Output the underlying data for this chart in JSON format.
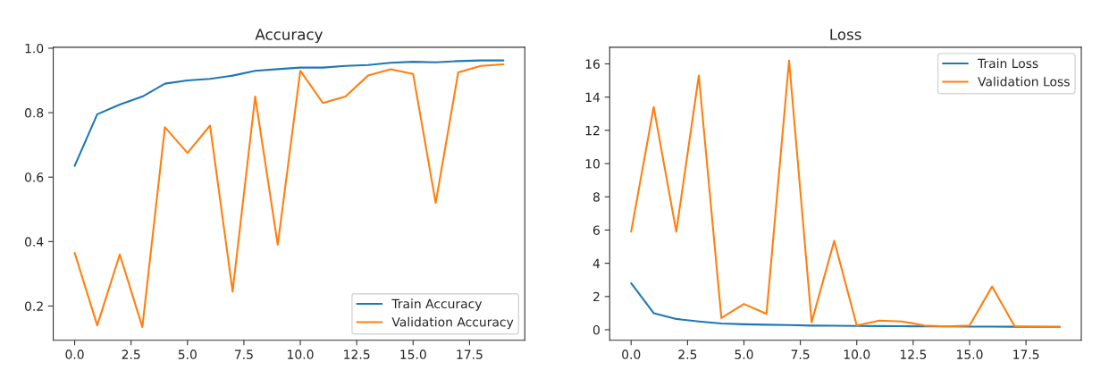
{
  "chart_data": [
    {
      "type": "line",
      "title": "Accuracy",
      "x": [
        0,
        1,
        2,
        3,
        4,
        5,
        6,
        7,
        8,
        9,
        10,
        11,
        12,
        13,
        14,
        15,
        16,
        17,
        18,
        19
      ],
      "series": [
        {
          "name": "Train Accuracy",
          "color": "#1f77b4",
          "values": [
            0.635,
            0.795,
            0.825,
            0.85,
            0.89,
            0.9,
            0.905,
            0.915,
            0.93,
            0.935,
            0.94,
            0.94,
            0.945,
            0.948,
            0.955,
            0.958,
            0.956,
            0.96,
            0.962,
            0.962
          ]
        },
        {
          "name": "Validation Accuracy",
          "color": "#ff7f0e",
          "values": [
            0.365,
            0.14,
            0.36,
            0.135,
            0.755,
            0.675,
            0.76,
            0.245,
            0.85,
            0.39,
            0.93,
            0.83,
            0.85,
            0.915,
            0.935,
            0.92,
            0.52,
            0.925,
            0.945,
            0.95
          ]
        }
      ],
      "xlim": [
        -0.95,
        19.95
      ],
      "xticks": [
        {
          "value": 0,
          "label": "0.0"
        },
        {
          "value": 2.5,
          "label": "2.5"
        },
        {
          "value": 5,
          "label": "5.0"
        },
        {
          "value": 7.5,
          "label": "7.5"
        },
        {
          "value": 10,
          "label": "10.0"
        },
        {
          "value": 12.5,
          "label": "12.5"
        },
        {
          "value": 15,
          "label": "15.0"
        },
        {
          "value": 17.5,
          "label": "17.5"
        }
      ],
      "ylim": [
        0.094,
        1.003
      ],
      "yticks": [
        0.2,
        0.4,
        0.6,
        0.8,
        {
          "value": 1,
          "label": "1.0"
        }
      ],
      "legend": "bottom right",
      "grid": false
    },
    {
      "type": "line",
      "title": "Loss",
      "x": [
        0,
        1,
        2,
        3,
        4,
        5,
        6,
        7,
        8,
        9,
        10,
        11,
        12,
        13,
        14,
        15,
        16,
        17,
        18,
        19
      ],
      "series": [
        {
          "name": "Train Loss",
          "color": "#1f77b4",
          "values": [
            2.8,
            1.0,
            0.65,
            0.5,
            0.38,
            0.33,
            0.3,
            0.28,
            0.25,
            0.24,
            0.23,
            0.22,
            0.21,
            0.2,
            0.2,
            0.19,
            0.19,
            0.18,
            0.17,
            0.17
          ]
        },
        {
          "name": "Validation Loss",
          "color": "#ff7f0e",
          "values": [
            5.9,
            13.4,
            5.9,
            15.3,
            0.7,
            1.55,
            0.95,
            16.2,
            0.45,
            5.35,
            0.25,
            0.55,
            0.5,
            0.25,
            0.2,
            0.25,
            2.6,
            0.2,
            0.18,
            0.17
          ]
        }
      ],
      "xlim": [
        -0.95,
        19.95
      ],
      "xticks": [
        {
          "value": 0,
          "label": "0.0"
        },
        {
          "value": 2.5,
          "label": "2.5"
        },
        {
          "value": 5,
          "label": "5.0"
        },
        {
          "value": 7.5,
          "label": "7.5"
        },
        {
          "value": 10,
          "label": "10.0"
        },
        {
          "value": 12.5,
          "label": "12.5"
        },
        {
          "value": 15,
          "label": "15.0"
        },
        {
          "value": 17.5,
          "label": "17.5"
        }
      ],
      "ylim": [
        -0.63,
        17.0
      ],
      "yticks": [
        0,
        2,
        4,
        6,
        8,
        10,
        12,
        14,
        16
      ],
      "legend": "top right",
      "grid": false
    }
  ]
}
